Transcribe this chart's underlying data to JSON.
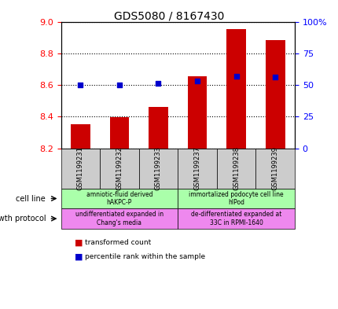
{
  "title": "GDS5080 / 8167430",
  "samples": [
    "GSM1199231",
    "GSM1199232",
    "GSM1199233",
    "GSM1199237",
    "GSM1199238",
    "GSM1199239"
  ],
  "transformed_count": [
    8.35,
    8.395,
    8.46,
    8.655,
    8.955,
    8.885
  ],
  "percentile_rank": [
    50,
    50,
    51,
    53,
    57,
    56
  ],
  "ylim_left": [
    8.2,
    9.0
  ],
  "ylim_right": [
    0,
    100
  ],
  "yticks_left": [
    8.2,
    8.4,
    8.6,
    8.8,
    9.0
  ],
  "yticks_right": [
    0,
    25,
    50,
    75,
    100
  ],
  "bar_color": "#cc0000",
  "dot_color": "#0000cc",
  "cell_line_label": "cell line",
  "growth_protocol_label": "growth protocol",
  "cell_line_text_g1": "amniotic-fluid derived\nhAKPC-P",
  "cell_line_text_g2": "immortalized podocyte cell line\nhIPod",
  "growth_text_g1": "undifferentiated expanded in\nChang's media",
  "growth_text_g2": "de-differentiated expanded at\n33C in RPMI-1640",
  "cell_line_color": "#aaffaa",
  "growth_color": "#ee88ee",
  "legend_items": [
    {
      "color": "#cc0000",
      "label": "transformed count"
    },
    {
      "color": "#0000cc",
      "label": "percentile rank within the sample"
    }
  ],
  "sample_box_color": "#cccccc"
}
